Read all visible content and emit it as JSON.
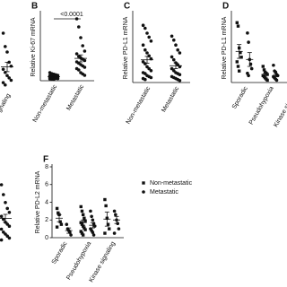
{
  "chart_data": [
    {
      "type": "dotplot",
      "categories": [
        "Kinase signaling"
      ],
      "ylim": [
        0,
        8
      ],
      "series": [
        {
          "marker": "circle",
          "values": [
            [
              7.2,
              5.5,
              4.8,
              3.5,
              3.0,
              2.6,
              2.2,
              1.8,
              1.5,
              1.2,
              0.9,
              0.6
            ]
          ],
          "means": [
            2.9
          ],
          "errors": [
            0.6
          ]
        }
      ]
    },
    {
      "type": "dotplot",
      "title": "B",
      "ylabel": "Relative Ki-67 mRNA",
      "categories": [
        "Non-metastatic",
        "Metastatic"
      ],
      "annotation": "<0.0001",
      "ylim": [
        0,
        25
      ],
      "series": [
        {
          "marker": "circle",
          "values": [
            [
              3.0,
              2.6,
              2.4,
              2.2,
              2.0,
              1.9,
              1.8,
              1.6,
              1.5,
              1.4,
              1.2,
              1.1,
              1.0,
              0.9,
              0.8,
              0.7,
              0.6,
              0.5
            ],
            [
              23,
              20,
              16,
              13,
              11,
              10,
              9,
              8.5,
              8,
              7.5,
              7,
              6.5,
              6,
              5.5,
              5,
              4.5,
              4,
              3,
              2.5,
              2
            ]
          ],
          "means": [
            1.5,
            8.3
          ],
          "errors": [
            0.2,
            1.3
          ]
        }
      ]
    },
    {
      "type": "dotplot",
      "title": "C",
      "ylabel": "Relative PD-L1 mRNA",
      "categories": [
        "Non-metastatic",
        "Metastatic"
      ],
      "ylim": [
        0,
        7
      ],
      "series": [
        {
          "marker": "circle",
          "values": [
            [
              5.8,
              5.5,
              5.0,
              4.6,
              4.2,
              3.8,
              3.3,
              3.0,
              2.7,
              2.4,
              2.1,
              1.9,
              1.6,
              1.4,
              1.2,
              1.0,
              0.9,
              0.7,
              0.6,
              0.5,
              0.4,
              0.3
            ],
            [
              4.7,
              4.3,
              3.8,
              3.3,
              3.0,
              2.6,
              2.3,
              2.0,
              1.8,
              1.6,
              1.4,
              1.2,
              1.0,
              0.9,
              0.8,
              0.6,
              0.5,
              0.4,
              0.3,
              0.2
            ]
          ],
          "means": [
            2.3,
            1.7
          ],
          "errors": [
            0.35,
            0.3
          ]
        }
      ]
    },
    {
      "type": "dotplot",
      "title": "D",
      "ylabel": "Relative PD-L1 mRNA",
      "categories": [
        "Sporadic",
        "Pseudohypoxia",
        "Kinase signaling"
      ],
      "ylim": [
        0,
        6
      ],
      "series": [
        {
          "marker": "square",
          "values": [
            [
              5.2,
              4.9,
              3.0,
              2.6,
              2.2,
              1.8,
              1.4,
              1.0
            ],
            [
              1.4,
              1.1,
              0.9,
              0.8,
              0.7,
              0.6,
              0.5,
              0.4,
              0.3,
              0.2
            ],
            [
              1.2,
              0.8,
              0.6,
              0.4,
              0.3
            ]
          ],
          "means": [
            2.7,
            0.7,
            0.6
          ],
          "errors": [
            0.6,
            0.1,
            0.15
          ]
        },
        {
          "marker": "circle",
          "values": [
            [
              4.3,
              3.5,
              2.0,
              1.6,
              1.2,
              0.8,
              0.6
            ],
            [
              1.5,
              1.0,
              0.9,
              0.7,
              0.6,
              0.5,
              0.4,
              0.3,
              0.2
            ],
            [
              0.9,
              0.5,
              0.3
            ]
          ],
          "means": [
            2.0,
            0.6,
            0.5
          ],
          "errors": [
            0.6,
            0.1,
            0.2
          ]
        }
      ]
    },
    {
      "type": "dotplot",
      "categories": [
        null
      ],
      "ylim": [
        0,
        7
      ],
      "series": [
        {
          "marker": "circle",
          "values": [
            [
              6.0,
              5.0,
              4.2,
              3.6,
              3.2,
              2.8,
              2.5,
              2.2,
              2.0,
              1.8,
              1.5,
              1.2,
              1.0,
              0.8,
              0.6,
              0.4
            ]
          ],
          "means": [
            2.6
          ],
          "errors": [
            0.4
          ]
        }
      ]
    },
    {
      "type": "dotplot",
      "title": "F",
      "ylabel": "Relative PD-L2 mRNA",
      "categories": [
        "Sporadic",
        "Pseudohypoxia",
        "Kinase signaling"
      ],
      "ylim": [
        0,
        8
      ],
      "yticks": [
        0,
        2,
        4,
        6,
        8
      ],
      "legend": "right",
      "series": [
        {
          "name": "Non-metastatic",
          "marker": "square",
          "values": [
            [
              3.3,
              2.8,
              2.6,
              1.8,
              1.5,
              1.2
            ],
            [
              3.5,
              3.0,
              2.6,
              2.2,
              1.9,
              1.7,
              1.5,
              1.3,
              1.1,
              0.9,
              0.7,
              0.5,
              0.3
            ],
            [
              4.3,
              3.6,
              2.2,
              1.5,
              1.0,
              0.5
            ]
          ],
          "means": [
            2.2,
            1.7,
            2.1
          ],
          "errors": [
            0.4,
            0.3,
            0.8
          ]
        },
        {
          "name": "Metastatic",
          "marker": "circle",
          "values": [
            [
              1.5,
              1.0,
              0.8,
              0.6,
              0.3
            ],
            [
              3.0,
              2.4,
              2.0,
              1.6,
              1.3,
              1.0,
              0.8,
              0.6,
              0.3
            ],
            [
              3.0,
              2.6,
              2.0,
              1.6,
              1.0,
              0.5
            ]
          ],
          "means": [
            0.8,
            1.4,
            2.0
          ],
          "errors": [
            0.3,
            0.3,
            0.4
          ]
        }
      ]
    }
  ]
}
